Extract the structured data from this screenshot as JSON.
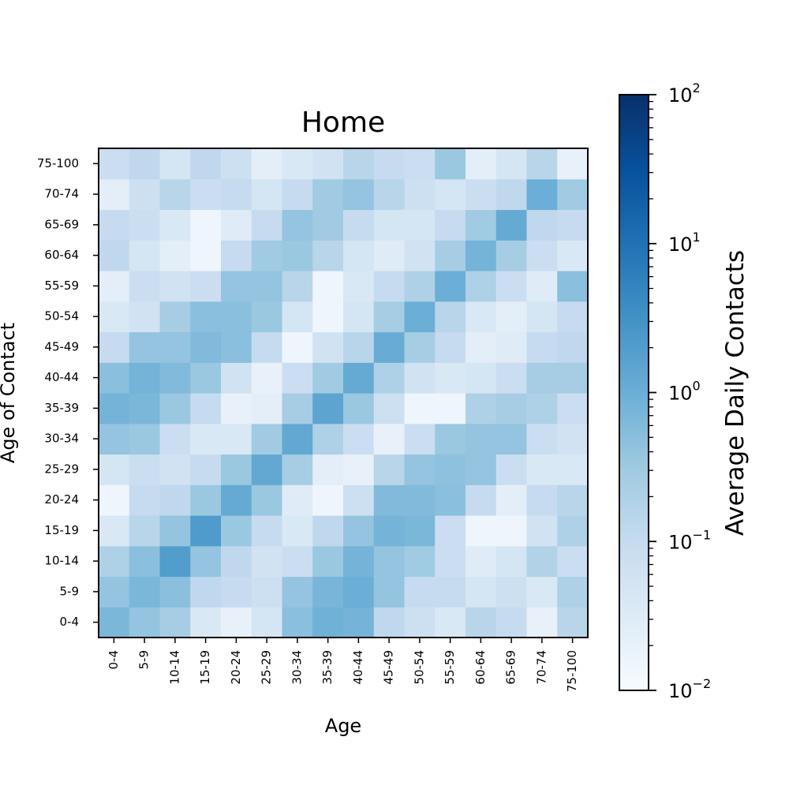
{
  "chart_data": {
    "type": "heatmap",
    "title": "Home",
    "xlabel": "Age",
    "ylabel": "Age of Contact",
    "x_categories": [
      "0-4",
      "5-9",
      "10-14",
      "15-19",
      "20-24",
      "25-29",
      "30-34",
      "35-39",
      "40-44",
      "45-49",
      "50-54",
      "55-59",
      "60-64",
      "65-69",
      "70-74",
      "75-100"
    ],
    "y_categories": [
      "0-4",
      "5-9",
      "10-14",
      "15-19",
      "20-24",
      "25-29",
      "30-34",
      "35-39",
      "40-44",
      "45-49",
      "50-54",
      "55-59",
      "60-64",
      "65-69",
      "70-74",
      "75-100"
    ],
    "values": [
      [
        0.7,
        0.4,
        0.25,
        0.04,
        0.02,
        0.05,
        0.5,
        0.9,
        0.8,
        0.12,
        0.07,
        0.04,
        0.15,
        0.1,
        0.02,
        0.15
      ],
      [
        0.4,
        0.7,
        0.5,
        0.12,
        0.1,
        0.07,
        0.4,
        0.75,
        1.0,
        0.4,
        0.1,
        0.1,
        0.05,
        0.07,
        0.04,
        0.2
      ],
      [
        0.2,
        0.5,
        2.0,
        0.4,
        0.12,
        0.06,
        0.08,
        0.35,
        0.8,
        0.4,
        0.3,
        0.08,
        0.03,
        0.05,
        0.18,
        0.08
      ],
      [
        0.04,
        0.15,
        0.4,
        2.2,
        0.35,
        0.1,
        0.04,
        0.12,
        0.4,
        0.8,
        0.7,
        0.08,
        0.015,
        0.015,
        0.06,
        0.2
      ],
      [
        0.015,
        0.1,
        0.12,
        0.35,
        1.2,
        0.35,
        0.03,
        0.015,
        0.07,
        0.6,
        0.6,
        0.5,
        0.1,
        0.025,
        0.1,
        0.15
      ],
      [
        0.05,
        0.08,
        0.06,
        0.1,
        0.35,
        1.3,
        0.25,
        0.025,
        0.02,
        0.15,
        0.4,
        0.45,
        0.4,
        0.08,
        0.04,
        0.04
      ],
      [
        0.4,
        0.35,
        0.08,
        0.04,
        0.04,
        0.3,
        1.3,
        0.2,
        0.08,
        0.02,
        0.08,
        0.35,
        0.4,
        0.4,
        0.08,
        0.06
      ],
      [
        0.8,
        0.7,
        0.35,
        0.1,
        0.02,
        0.025,
        0.25,
        1.5,
        0.35,
        0.07,
        0.015,
        0.015,
        0.2,
        0.25,
        0.2,
        0.08
      ],
      [
        0.5,
        0.8,
        0.6,
        0.35,
        0.06,
        0.02,
        0.08,
        0.3,
        1.2,
        0.2,
        0.06,
        0.04,
        0.05,
        0.08,
        0.25,
        0.25
      ],
      [
        0.1,
        0.4,
        0.4,
        0.6,
        0.5,
        0.1,
        0.015,
        0.06,
        0.15,
        1.1,
        0.25,
        0.1,
        0.025,
        0.03,
        0.1,
        0.12
      ],
      [
        0.04,
        0.06,
        0.25,
        0.5,
        0.5,
        0.35,
        0.05,
        0.015,
        0.05,
        0.25,
        1.0,
        0.15,
        0.04,
        0.025,
        0.05,
        0.1
      ],
      [
        0.025,
        0.08,
        0.06,
        0.08,
        0.4,
        0.4,
        0.15,
        0.015,
        0.04,
        0.1,
        0.2,
        1.0,
        0.2,
        0.08,
        0.03,
        0.5
      ],
      [
        0.12,
        0.05,
        0.025,
        0.015,
        0.1,
        0.3,
        0.35,
        0.15,
        0.05,
        0.03,
        0.06,
        0.25,
        0.8,
        0.25,
        0.08,
        0.04
      ],
      [
        0.1,
        0.08,
        0.04,
        0.015,
        0.03,
        0.1,
        0.4,
        0.3,
        0.1,
        0.05,
        0.05,
        0.1,
        0.3,
        1.2,
        0.12,
        0.1
      ],
      [
        0.025,
        0.07,
        0.15,
        0.08,
        0.1,
        0.05,
        0.1,
        0.3,
        0.4,
        0.15,
        0.07,
        0.05,
        0.08,
        0.12,
        1.0,
        0.3
      ],
      [
        0.08,
        0.12,
        0.05,
        0.12,
        0.07,
        0.025,
        0.04,
        0.06,
        0.15,
        0.1,
        0.08,
        0.35,
        0.025,
        0.05,
        0.15,
        0.02
      ]
    ],
    "colormap": "Blues",
    "color_scale": "log",
    "color_range": [
      0.01,
      100
    ],
    "colorbar": {
      "label": "Average Daily Contacts",
      "ticks": [
        {
          "base": "10",
          "exp": "2",
          "value": 100
        },
        {
          "base": "10",
          "exp": "1",
          "value": 10
        },
        {
          "base": "10",
          "exp": "0",
          "value": 1
        },
        {
          "base": "10",
          "exp": "−1",
          "value": 0.1
        },
        {
          "base": "10",
          "exp": "−2",
          "value": 0.01
        }
      ]
    },
    "grid": false,
    "legend": "none"
  }
}
